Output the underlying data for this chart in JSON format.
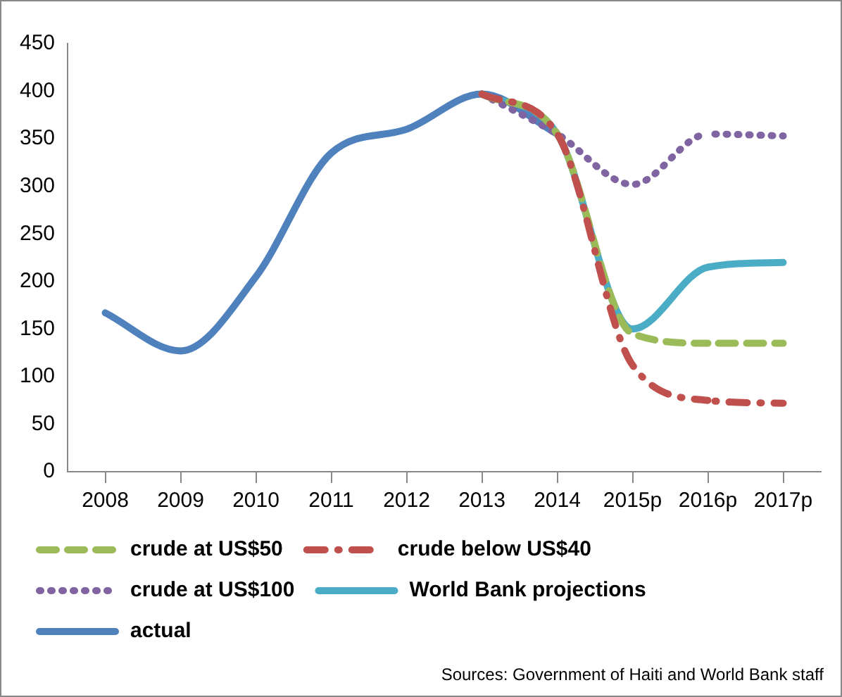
{
  "chart_data": {
    "type": "line",
    "categories": [
      "2008",
      "2009",
      "2010",
      "2011",
      "2012",
      "2013",
      "2014",
      "2015p",
      "2016p",
      "2017p"
    ],
    "series": [
      {
        "name": "crude at US$50",
        "color": "#9bbb59",
        "line_style": "dashed",
        "values": [
          null,
          null,
          null,
          null,
          null,
          397,
          355,
          145,
          135,
          135
        ]
      },
      {
        "name": "crude below US$40",
        "color": "#c0504d",
        "line_style": "dashdot",
        "values": [
          null,
          null,
          null,
          null,
          null,
          397,
          355,
          112,
          75,
          72
        ]
      },
      {
        "name": "crude at US$100",
        "color": "#8064a2",
        "line_style": "dotted",
        "values": [
          null,
          null,
          null,
          null,
          null,
          397,
          355,
          302,
          355,
          353
        ]
      },
      {
        "name": "World Bank projections",
        "color": "#4bacc6",
        "line_style": "solid",
        "values": [
          null,
          null,
          null,
          null,
          null,
          397,
          355,
          150,
          215,
          220
        ]
      },
      {
        "name": "actual",
        "color": "#4f81bd",
        "line_style": "solid",
        "values": [
          167,
          127,
          205,
          335,
          360,
          397,
          355,
          null,
          null,
          null
        ]
      }
    ],
    "ylim": [
      0,
      450
    ],
    "yticks": [
      0,
      50,
      100,
      150,
      200,
      250,
      300,
      350,
      400,
      450
    ],
    "grid": false,
    "legend": "bottom",
    "marker": "none",
    "annotations": [
      "Sources: Government of Haiti and World Bank staff"
    ]
  }
}
